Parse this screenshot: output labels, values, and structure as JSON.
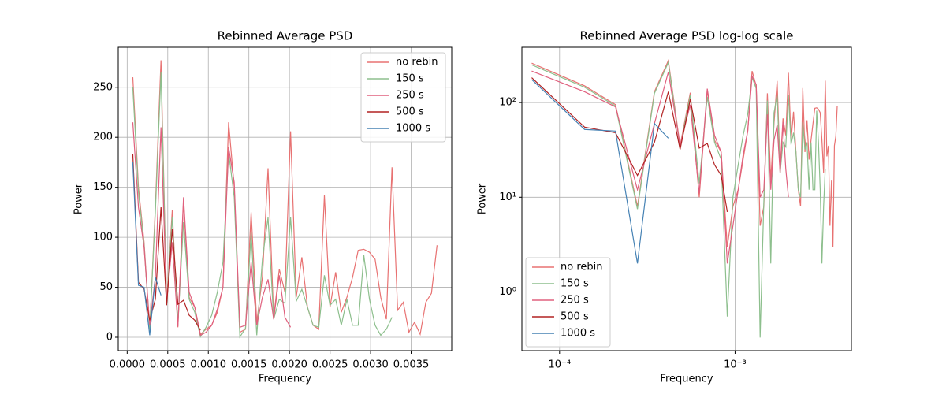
{
  "chart_data": [
    {
      "type": "line",
      "title": "Rebinned Average PSD",
      "xlabel": "Frequency",
      "ylabel": "Power",
      "xscale": "linear",
      "yscale": "linear",
      "grid": true,
      "legend": "upper right",
      "xlim": [
        -0.00011,
        0.004
      ],
      "ylim": [
        -13.4,
        290
      ],
      "xticks": [
        {
          "value": 0,
          "label": "0.0000"
        },
        {
          "value": 0.0005,
          "label": "0.0005"
        },
        {
          "value": 0.001,
          "label": "0.0010"
        },
        {
          "value": 0.0015,
          "label": "0.0015"
        },
        {
          "value": 0.002,
          "label": "0.0020"
        },
        {
          "value": 0.0025,
          "label": "0.0025"
        },
        {
          "value": 0.003,
          "label": "0.0030"
        },
        {
          "value": 0.0035,
          "label": "0.0035"
        }
      ],
      "yticks": [
        0,
        50,
        100,
        150,
        200,
        250
      ],
      "x": [
        6.94e-05,
        0.0001389,
        0.0002083,
        0.0002778,
        0.0003472,
        0.0004167,
        0.0004861,
        0.0005556,
        0.000625,
        0.0006944,
        0.0007639,
        0.0008333,
        0.0009028,
        0.0009722,
        0.0010417,
        0.0011111,
        0.0011806,
        0.00125,
        0.0013194,
        0.0013889,
        0.0014583,
        0.0015278,
        0.0015972,
        0.0016667,
        0.0017361,
        0.0018056,
        0.001875,
        0.0019444,
        0.0020139,
        0.0020833,
        0.0021528,
        0.0022222,
        0.0022917,
        0.0023611,
        0.0024306,
        0.0025,
        0.0025694,
        0.0026389,
        0.0027083,
        0.0027778,
        0.0028472,
        0.0029167,
        0.0029861,
        0.0030556,
        0.003125,
        0.0031944,
        0.0032639,
        0.0033333,
        0.0034028,
        0.0034722,
        0.0035417,
        0.0036111,
        0.0036806,
        0.00375,
        0.0038194
      ],
      "series": [
        {
          "name": "no rebin",
          "color": "#e87272",
          "values": [
            260,
            150,
            95,
            8,
            130,
            277,
            35,
            127,
            10,
            135,
            40,
            30,
            3,
            8,
            12,
            25,
            50,
            215,
            150,
            5,
            8,
            125,
            15,
            60,
            169,
            20,
            68,
            45,
            206,
            40,
            80,
            30,
            12,
            8,
            142,
            30,
            65,
            25,
            40,
            60,
            87,
            88,
            85,
            78,
            40,
            18,
            170,
            27,
            35,
            5,
            15,
            3,
            35,
            44,
            92
          ]
        },
        {
          "name": "150 s",
          "color": "#8dbf8d",
          "values": [
            250,
            145,
            92,
            7.5,
            125,
            265,
            33,
            120,
            14,
            115,
            38,
            25,
            0.55,
            10,
            22,
            45,
            75,
            185,
            140,
            0.33,
            9,
            105,
            2,
            78,
            120,
            18,
            38,
            34,
            120,
            36,
            48,
            30,
            12,
            10,
            62,
            32,
            38,
            12,
            38,
            12,
            12,
            82,
            38,
            12,
            2,
            8,
            20,
            null,
            null,
            null,
            null,
            null,
            null,
            null,
            null
          ]
        },
        {
          "name": "250 s",
          "color": "#e0607e",
          "values": [
            215,
            130,
            90,
            12,
            60,
            210,
            35,
            95,
            11,
            140,
            45,
            30,
            2,
            5,
            12,
            28,
            50,
            190,
            155,
            10,
            12,
            75,
            12,
            40,
            58,
            18,
            62,
            20,
            10,
            null,
            null,
            null,
            null,
            null,
            null,
            null,
            null,
            null,
            null,
            null,
            null,
            null,
            null,
            null,
            null,
            null,
            null,
            null,
            null,
            null,
            null,
            null,
            null,
            null,
            null
          ]
        },
        {
          "name": "500 s",
          "color": "#b22222",
          "values": [
            183,
            55,
            48,
            17,
            38,
            130,
            32,
            108,
            33,
            37,
            22,
            17,
            7,
            null,
            null,
            null,
            null,
            null,
            null,
            null,
            null,
            null,
            null,
            null,
            null,
            null,
            null,
            null,
            null,
            null,
            null,
            null,
            null,
            null,
            null,
            null,
            null,
            null,
            null,
            null,
            null,
            null,
            null,
            null,
            null,
            null,
            null,
            null,
            null,
            null,
            null,
            null,
            null,
            null,
            null
          ]
        },
        {
          "name": "1000 s",
          "color": "#4682b4",
          "values": [
            175,
            52,
            50,
            2,
            60,
            42,
            null,
            null,
            null,
            null,
            null,
            null,
            null,
            null,
            null,
            null,
            null,
            null,
            null,
            null,
            null,
            null,
            null,
            null,
            null,
            null,
            null,
            null,
            null,
            null,
            null,
            null,
            null,
            null,
            null,
            null,
            null,
            null,
            null,
            null,
            null,
            null,
            null,
            null,
            null,
            null,
            null,
            null,
            null,
            null,
            null,
            null,
            null,
            null,
            null
          ]
        }
      ]
    },
    {
      "type": "line",
      "title": "Rebinned Average PSD log-log scale",
      "xlabel": "Frequency",
      "ylabel": "Power",
      "xscale": "log",
      "yscale": "log",
      "grid": true,
      "legend": "lower left",
      "xlim": [
        6.1e-05,
        0.0046
      ],
      "ylim": [
        0.24,
        383
      ],
      "xticks": [
        {
          "value": 0.0001,
          "label": "10⁻⁴"
        },
        {
          "value": 0.001,
          "label": "10⁻³"
        }
      ],
      "yticks": [
        {
          "value": 1,
          "label": "10⁰"
        },
        {
          "value": 10,
          "label": "10¹"
        },
        {
          "value": 100,
          "label": "10²"
        }
      ],
      "x": [
        6.94e-05,
        0.0001389,
        0.0002083,
        0.0002778,
        0.0003472,
        0.0004167,
        0.0004861,
        0.0005556,
        0.000625,
        0.0006944,
        0.0007639,
        0.0008333,
        0.0009028,
        0.0009722,
        0.0010417,
        0.0011111,
        0.0011806,
        0.00125,
        0.0013194,
        0.0013889,
        0.0014583,
        0.0015278,
        0.0015972,
        0.0016667,
        0.0017361,
        0.0018056,
        0.001875,
        0.0019444,
        0.0020139,
        0.0020833,
        0.0021528,
        0.0022222,
        0.0022917,
        0.0023611,
        0.0024306,
        0.0025,
        0.0025694,
        0.0026389,
        0.0027083,
        0.0027778,
        0.0028472,
        0.0029167,
        0.0029861,
        0.0030556,
        0.003125,
        0.0031944,
        0.0032639,
        0.0033333,
        0.0034028,
        0.0034722,
        0.0035417,
        0.0036111,
        0.0036806,
        0.00375,
        0.0038194
      ],
      "series": [
        {
          "name": "no rebin",
          "color": "#e87272",
          "values": [
            260,
            150,
            95,
            8,
            130,
            277,
            35,
            127,
            10,
            135,
            40,
            30,
            3,
            8,
            12,
            25,
            50,
            215,
            150,
            5,
            8,
            125,
            15,
            60,
            169,
            20,
            68,
            45,
            206,
            40,
            80,
            30,
            12,
            8,
            142,
            30,
            65,
            25,
            40,
            60,
            87,
            88,
            85,
            78,
            40,
            18,
            170,
            27,
            35,
            5,
            15,
            3,
            35,
            44,
            92
          ]
        },
        {
          "name": "150 s",
          "color": "#8dbf8d",
          "values": [
            250,
            145,
            92,
            7.5,
            125,
            265,
            33,
            120,
            14,
            115,
            38,
            25,
            0.55,
            10,
            22,
            45,
            75,
            185,
            140,
            0.33,
            9,
            105,
            2,
            78,
            120,
            18,
            38,
            34,
            120,
            36,
            48,
            30,
            12,
            10,
            62,
            32,
            38,
            12,
            38,
            12,
            12,
            82,
            38,
            12,
            2,
            8,
            20,
            null,
            null,
            null,
            null,
            null,
            null,
            null,
            null
          ]
        },
        {
          "name": "250 s",
          "color": "#e0607e",
          "values": [
            215,
            130,
            90,
            12,
            60,
            210,
            35,
            95,
            11,
            140,
            45,
            30,
            2,
            5,
            12,
            28,
            50,
            190,
            155,
            10,
            12,
            75,
            12,
            40,
            58,
            18,
            62,
            20,
            10,
            null,
            null,
            null,
            null,
            null,
            null,
            null,
            null,
            null,
            null,
            null,
            null,
            null,
            null,
            null,
            null,
            null,
            null,
            null,
            null,
            null,
            null,
            null,
            null,
            null,
            null
          ]
        },
        {
          "name": "500 s",
          "color": "#b22222",
          "values": [
            183,
            55,
            48,
            17,
            38,
            130,
            32,
            108,
            33,
            37,
            22,
            17,
            7,
            null,
            null,
            null,
            null,
            null,
            null,
            null,
            null,
            null,
            null,
            null,
            null,
            null,
            null,
            null,
            null,
            null,
            null,
            null,
            null,
            null,
            null,
            null,
            null,
            null,
            null,
            null,
            null,
            null,
            null,
            null,
            null,
            null,
            null,
            null,
            null,
            null,
            null,
            null,
            null,
            null,
            null
          ]
        },
        {
          "name": "1000 s",
          "color": "#4682b4",
          "values": [
            175,
            52,
            50,
            2,
            60,
            42,
            null,
            null,
            null,
            null,
            null,
            null,
            null,
            null,
            null,
            null,
            null,
            null,
            null,
            null,
            null,
            null,
            null,
            null,
            null,
            null,
            null,
            null,
            null,
            null,
            null,
            null,
            null,
            null,
            null,
            null,
            null,
            null,
            null,
            null,
            null,
            null,
            null,
            null,
            null,
            null,
            null,
            null,
            null,
            null,
            null,
            null,
            null,
            null,
            null
          ]
        }
      ]
    }
  ]
}
